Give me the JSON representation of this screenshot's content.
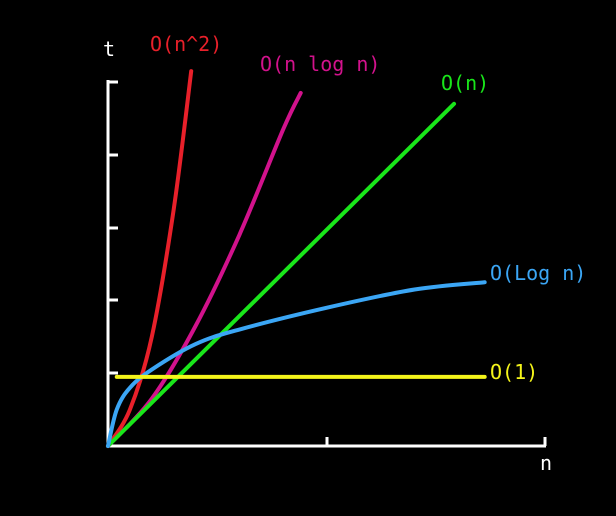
{
  "chart_data": {
    "type": "line",
    "xlabel": "n",
    "ylabel": "t",
    "xlim": [
      0,
      1
    ],
    "ylim": [
      0,
      1
    ],
    "grid": false,
    "legend": "inline at line ends",
    "series": [
      {
        "name": "O(n^2)",
        "color": "#e8202a",
        "x": [
          0,
          0.05,
          0.1,
          0.15,
          0.19
        ],
        "y": [
          0,
          0.1,
          0.3,
          0.65,
          1.03
        ]
      },
      {
        "name": "O(n log n)",
        "color": "#d2128c",
        "x": [
          0,
          0.1,
          0.2,
          0.3,
          0.4,
          0.44
        ],
        "y": [
          0,
          0.13,
          0.33,
          0.58,
          0.87,
          0.97
        ]
      },
      {
        "name": "O(n)",
        "color": "#19e61a",
        "x": [
          0,
          0.79
        ],
        "y": [
          0,
          0.94
        ]
      },
      {
        "name": "O(Log n)",
        "color": "#3ba6f5",
        "x": [
          0,
          0.02,
          0.05,
          0.1,
          0.2,
          0.3,
          0.5,
          0.7,
          0.86
        ],
        "y": [
          0,
          0.1,
          0.16,
          0.21,
          0.28,
          0.32,
          0.38,
          0.43,
          0.45
        ]
      },
      {
        "name": "O(1)",
        "color": "#f5f51a",
        "x": [
          0.02,
          0.86
        ],
        "y": [
          0.19,
          0.19
        ]
      }
    ]
  }
}
